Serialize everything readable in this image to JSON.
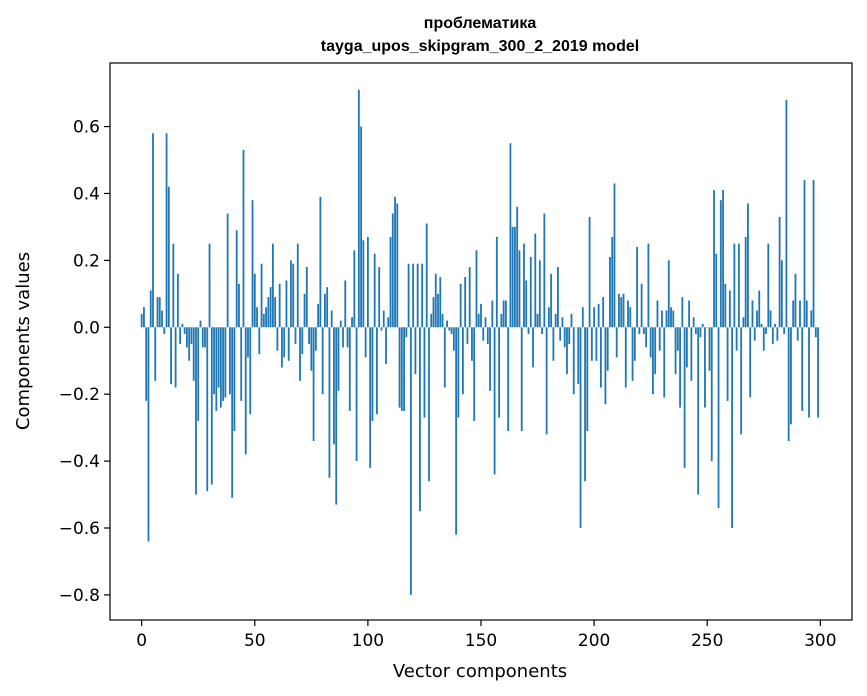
{
  "chart_data": {
    "type": "bar",
    "title_line1": "проблематика",
    "title_line2": "tayga_upos_skipgram_300_2_2019 model",
    "xlabel": "Vector components",
    "ylabel": "Components values",
    "xlim": [
      -14,
      314
    ],
    "ylim": [
      -0.875,
      0.79
    ],
    "xticks": [
      0,
      50,
      100,
      150,
      200,
      250,
      300
    ],
    "xtick_labels": [
      "0",
      "50",
      "100",
      "150",
      "200",
      "250",
      "300"
    ],
    "yticks": [
      -0.8,
      -0.6,
      -0.4,
      -0.2,
      0.0,
      0.2,
      0.4,
      0.6
    ],
    "ytick_labels": [
      "−0.8",
      "−0.6",
      "−0.4",
      "−0.2",
      "0.0",
      "0.2",
      "0.4",
      "0.6"
    ],
    "bar_color": "#1f77b4",
    "values": [
      0.04,
      0.06,
      -0.22,
      -0.64,
      0.11,
      0.58,
      -0.16,
      0.09,
      0.09,
      0.05,
      -0.02,
      0.58,
      0.42,
      -0.17,
      0.25,
      -0.18,
      0.16,
      -0.05,
      0.01,
      -0.02,
      -0.06,
      -0.1,
      -0.05,
      -0.16,
      -0.5,
      -0.28,
      0.02,
      -0.06,
      -0.06,
      -0.49,
      0.25,
      -0.47,
      -0.2,
      -0.25,
      -0.18,
      -0.24,
      -0.22,
      -0.21,
      0.34,
      -0.2,
      -0.51,
      -0.31,
      0.29,
      0.13,
      -0.22,
      0.53,
      -0.38,
      -0.09,
      -0.26,
      0.38,
      0.16,
      0.06,
      -0.08,
      0.19,
      0.04,
      0.06,
      0.09,
      0.12,
      0.25,
      0.09,
      -0.07,
      0.13,
      -0.12,
      -0.09,
      0.14,
      -0.1,
      0.2,
      0.19,
      -0.05,
      0.25,
      -0.16,
      -0.08,
      0.1,
      0.18,
      -0.05,
      -0.13,
      -0.34,
      -0.07,
      0.07,
      0.39,
      -0.2,
      0.1,
      0.12,
      -0.45,
      0.05,
      -0.35,
      -0.53,
      -0.19,
      0.02,
      -0.06,
      0.14,
      -0.06,
      -0.25,
      0.03,
      0.23,
      -0.4,
      0.71,
      0.6,
      0.26,
      -0.09,
      0.27,
      -0.42,
      -0.28,
      0.22,
      -0.26,
      0.18,
      -0.01,
      0.05,
      -0.11,
      0.03,
      0.27,
      0.34,
      0.39,
      0.37,
      -0.24,
      -0.25,
      -0.25,
      -0.03,
      0.19,
      -0.8,
      0.19,
      -0.14,
      0.19,
      -0.55,
      0.19,
      -0.27,
      0.31,
      -0.46,
      0.04,
      0.09,
      0.16,
      0.1,
      0.15,
      0.04,
      -0.18,
      0.02,
      -0.01,
      -0.02,
      -0.07,
      -0.62,
      -0.27,
      0.13,
      -0.2,
      0.15,
      -0.05,
      0.18,
      -0.1,
      -0.28,
      0.23,
      0.04,
      0.07,
      -0.04,
      0.03,
      -0.05,
      -0.19,
      0.08,
      -0.44,
      0.27,
      -0.27,
      0.04,
      0.08,
      0.08,
      -0.31,
      0.55,
      0.3,
      0.3,
      0.36,
      0.23,
      -0.31,
      0.25,
      0.14,
      -0.02,
      0.21,
      -0.12,
      0.28,
      0.04,
      0.2,
      -0.02,
      0.34,
      -0.32,
      0.06,
      0.16,
      -0.1,
      0.04,
      0.18,
      -0.04,
      0.03,
      -0.06,
      -0.14,
      -0.05,
      0.04,
      -0.2,
      0.0,
      -0.17,
      -0.6,
      0.06,
      -0.46,
      -0.31,
      0.33,
      -0.1,
      0.06,
      -0.1,
      0.07,
      -0.18,
      0.09,
      -0.23,
      -0.13,
      0.21,
      0.27,
      0.43,
      -0.09,
      0.1,
      0.09,
      0.1,
      -0.18,
      0.08,
      0.06,
      -0.16,
      -0.1,
      0.24,
      -0.02,
      0.13,
      -0.02,
      -0.06,
      0.25,
      -0.09,
      -0.2,
      -0.14,
      0.08,
      -0.07,
      0.05,
      -0.21,
      0.05,
      0.2,
      0.06,
      0.05,
      -0.14,
      -0.07,
      -0.24,
      0.09,
      -0.42,
      -0.12,
      0.08,
      -0.16,
      0.03,
      -0.02,
      -0.5,
      -0.03,
      0.01,
      -0.24,
      0.0,
      -0.13,
      -0.4,
      0.41,
      0.22,
      -0.54,
      0.38,
      0.41,
      0.13,
      -0.22,
      0.11,
      -0.6,
      0.25,
      -0.07,
      0.25,
      -0.32,
      0.03,
      0.27,
      0.37,
      -0.21,
      0.08,
      -0.04,
      0.05,
      0.11,
      0.01,
      -0.07,
      -0.02,
      0.25,
      0.05,
      -0.05,
      0.01,
      -0.04,
      0.33,
      0.2,
      -0.02,
      0.68,
      -0.34,
      -0.29,
      0.08,
      0.16,
      -0.04,
      0.08,
      -0.25,
      0.44,
      0.08,
      -0.27,
      0.05,
      0.44,
      -0.03,
      -0.27
    ]
  }
}
